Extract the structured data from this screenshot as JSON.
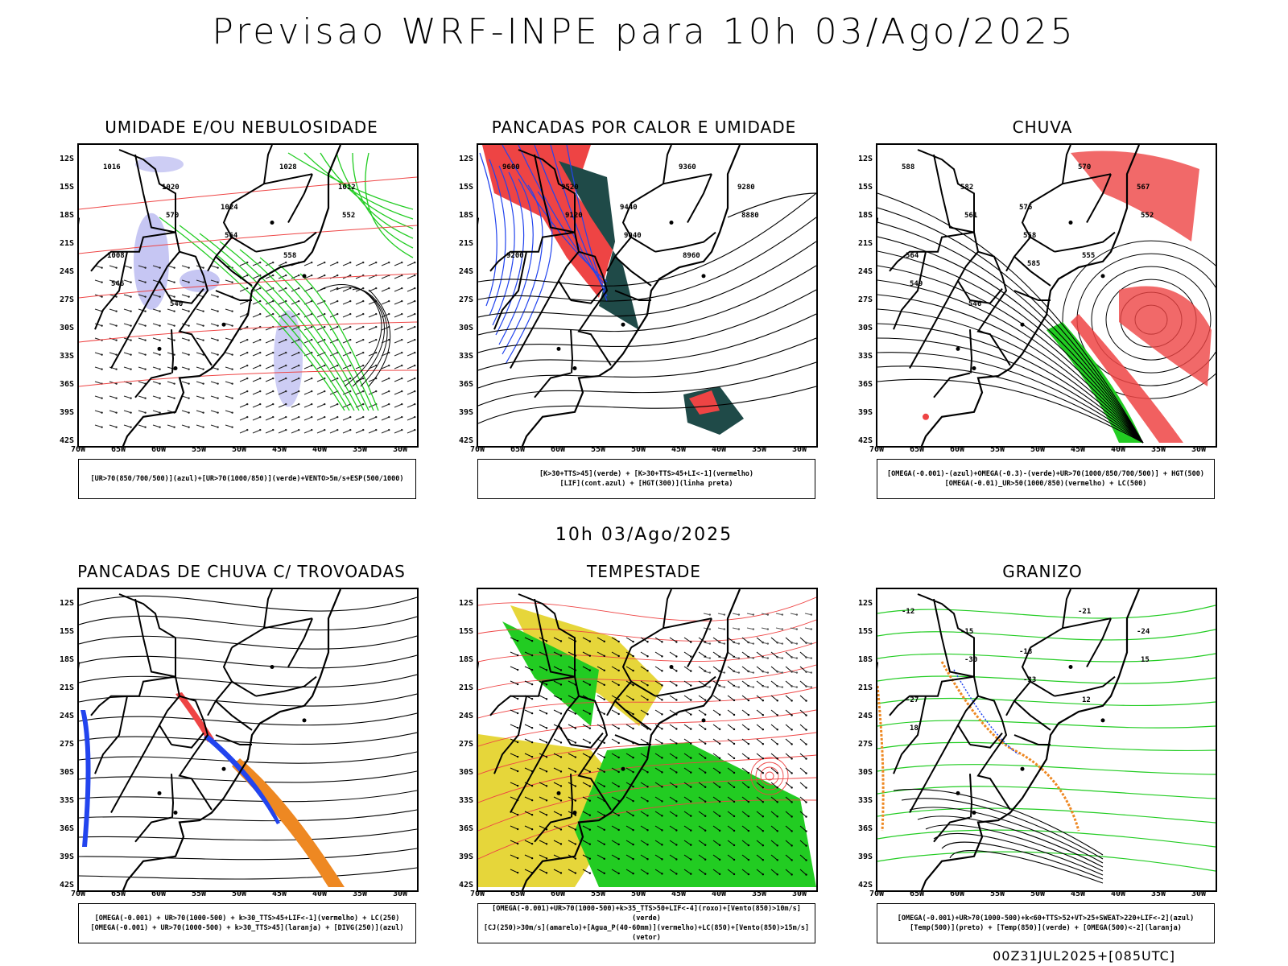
{
  "page": {
    "title": "Previsao WRF-INPE  para 10h 03/Ago/2025",
    "mid_date": "10h 03/Ago/2025",
    "footer": "00Z31JUL2025+[085UTC]"
  },
  "axes": {
    "lat_labels": [
      "12S",
      "15S",
      "18S",
      "21S",
      "24S",
      "27S",
      "30S",
      "33S",
      "36S",
      "39S",
      "42S"
    ],
    "lon_labels": [
      "70W",
      "65W",
      "60W",
      "55W",
      "50W",
      "45W",
      "40W",
      "35W",
      "30W"
    ]
  },
  "panels": [
    {
      "id": "umidade",
      "title": "UMIDADE E/OU NEBULOSIDADE",
      "legend": [
        "[UR>70(850/700/500)](azul)+[UR>70(1000/850)](verde)+VENTO>5m/s+ESP(500/1000)"
      ],
      "labels": [
        "1016",
        "1020",
        "1024",
        "1028",
        "1012",
        "1008",
        "570",
        "564",
        "558",
        "552",
        "546",
        "540"
      ]
    },
    {
      "id": "pancadas-calor",
      "title": "PANCADAS POR CALOR E UMIDADE",
      "legend": [
        "[K>30+TTS>45](verde) + [K>30+TTS>45+LI<-1](vermelho)",
        "[LIF](cont.azul) + [HGT(300)](linha preta)"
      ],
      "labels": [
        "9600",
        "9520",
        "9440",
        "9360",
        "9280",
        "9200",
        "9120",
        "9040",
        "8960",
        "8880"
      ]
    },
    {
      "id": "chuva",
      "title": "CHUVA",
      "legend": [
        "[OMEGA(-0.001)-(azul)+OMEGA(-0.3)-(verde)+UR>70(1000/850/700/500)] + HGT(500)",
        "[OMEGA(-0.01)_UR>50(1000/850)(vermelho) + LC(500)"
      ],
      "labels": [
        "588",
        "582",
        "576",
        "570",
        "567",
        "564",
        "561",
        "558",
        "555",
        "552",
        "549",
        "546",
        "585"
      ]
    },
    {
      "id": "pancadas-trovoadas",
      "title": "PANCADAS DE CHUVA C/ TROVOADAS",
      "legend": [
        "[OMEGA(-0.001) + UR>70(1000-500) + k>30_TTS>45+LIF<-1](vermelho) + LC(250)",
        "[OMEGA(-0.001) + UR>70(1000-500) + k>30_TTS>45](laranja) + [DIVG(250)](azul)"
      ],
      "labels": []
    },
    {
      "id": "tempestade",
      "title": "TEMPESTADE",
      "legend": [
        "[OMEGA(-0.001)+UR>70(1000-500)+k>35_TTS>50+LIF<-4](roxo)+[Vento(850)>10m/s](verde)",
        "[CJ(250)>30m/s](amarelo)+[Agua_P(40-60mm)](vermelho)+LC(850)+[Vento(850)>15m/s](vetor)"
      ],
      "labels": []
    },
    {
      "id": "granizo",
      "title": "GRANIZO",
      "legend": [
        "[OMEGA(-0.001)+UR>70(1000-500)+k<60+TTS>52+VT>25+SWEAT>220+LIF<-2](azul)",
        "[Temp(500)](preto) + [Temp(850)](verde) + [OMEGA(500)<-2](laranja)"
      ],
      "labels": [
        "-12",
        "-15",
        "-18",
        "-21",
        "-24",
        "-27",
        "-30",
        "-33",
        "12",
        "15",
        "18"
      ]
    }
  ],
  "colors": {
    "blue_fill": "#b8b8f0",
    "green": "#22cc22",
    "red": "#ee4444",
    "dark_teal": "#1f4a48",
    "yellow": "#e6d63a",
    "orange": "#ee8822",
    "blue": "#2244ee",
    "magenta": "#cc22cc"
  }
}
